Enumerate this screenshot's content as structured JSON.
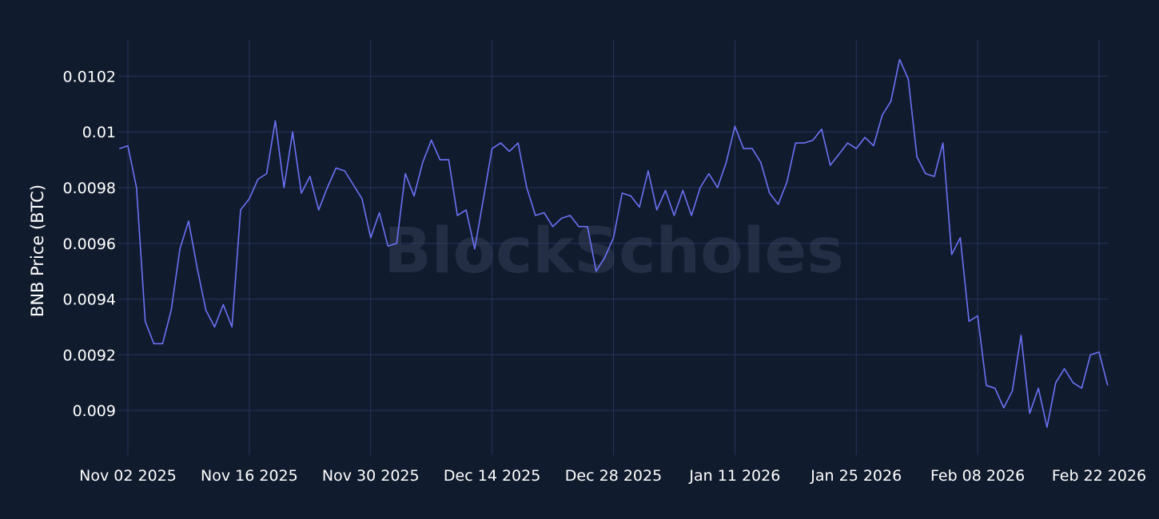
{
  "chart_data": {
    "type": "line",
    "title": "",
    "xlabel": "",
    "ylabel": "BNB Price (BTC)",
    "watermark": "BlockScholes",
    "grid": true,
    "legend": "none",
    "line_color": "#6b72f5",
    "background": "#111b2e",
    "grid_color": "#26345a",
    "xlim": [
      "2025-11-02",
      "2026-02-23"
    ],
    "ylim": [
      0.00884,
      0.01033
    ],
    "x_ticks": [
      "2025-11-02",
      "2025-11-16",
      "2025-11-30",
      "2025-12-14",
      "2025-12-28",
      "2026-01-11",
      "2026-01-25",
      "2026-02-08",
      "2026-02-22"
    ],
    "x_tick_labels": [
      "Nov 02 2025",
      "Nov 16 2025",
      "Nov 30 2025",
      "Dec 14 2025",
      "Dec 28 2025",
      "Jan 11 2026",
      "Jan 25 2026",
      "Feb 08 2026",
      "Feb 22 2026"
    ],
    "y_ticks": [
      0.009,
      0.0092,
      0.0094,
      0.0096,
      0.0098,
      0.01,
      0.0102
    ],
    "y_tick_labels": [
      "0.009",
      "0.0092",
      "0.0094",
      "0.0096",
      "0.0098",
      "0.01",
      "0.0102"
    ],
    "series": [
      {
        "x_start": "2025-11-01",
        "step_days": 1,
        "values": [
          0.00994,
          0.00995,
          0.0098,
          0.00932,
          0.00924,
          0.00924,
          0.00936,
          0.00958,
          0.00968,
          0.00951,
          0.00936,
          0.0093,
          0.00938,
          0.0093,
          0.00972,
          0.00976,
          0.00983,
          0.00985,
          0.01004,
          0.0098,
          0.01,
          0.00978,
          0.00984,
          0.00972,
          0.0098,
          0.00987,
          0.00986,
          0.00981,
          0.00976,
          0.00962,
          0.00971,
          0.00959,
          0.0096,
          0.00985,
          0.00977,
          0.00989,
          0.00997,
          0.0099,
          0.0099,
          0.0097,
          0.00972,
          0.00958,
          0.00976,
          0.00994,
          0.00996,
          0.00993,
          0.00996,
          0.0098,
          0.0097,
          0.00971,
          0.00966,
          0.00969,
          0.0097,
          0.00966,
          0.00966,
          0.0095,
          0.00955,
          0.00962,
          0.00978,
          0.00977,
          0.00973,
          0.00986,
          0.00972,
          0.00979,
          0.0097,
          0.00979,
          0.0097,
          0.0098,
          0.00985,
          0.0098,
          0.00989,
          0.01002,
          0.00994,
          0.00994,
          0.00989,
          0.00978,
          0.00974,
          0.00982,
          0.00996,
          0.00996,
          0.00997,
          0.01001,
          0.00988,
          0.00992,
          0.00996,
          0.00994,
          0.00998,
          0.00995,
          0.01006,
          0.01011,
          0.01026,
          0.01019,
          0.00991,
          0.00985,
          0.00984,
          0.00996,
          0.00956,
          0.00962,
          0.00932,
          0.00934,
          0.00909,
          0.00908,
          0.00901,
          0.00907,
          0.00927,
          0.00899,
          0.00908,
          0.00894,
          0.0091,
          0.00915,
          0.0091,
          0.00908,
          0.0092,
          0.00921,
          0.00909
        ]
      }
    ]
  }
}
